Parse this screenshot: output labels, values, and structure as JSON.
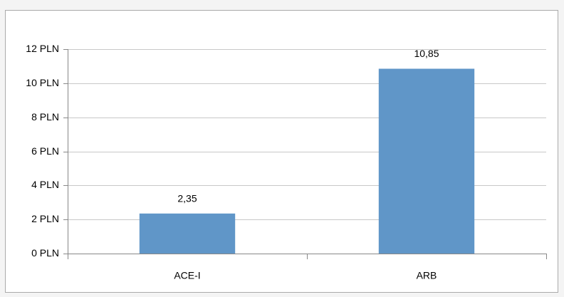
{
  "chart_data": {
    "type": "bar",
    "categories": [
      "ACE-I",
      "ARB"
    ],
    "values": [
      2.35,
      10.85
    ],
    "value_labels": [
      "2,35",
      "10,85"
    ],
    "color": "#6096c8",
    "ylim": [
      0,
      12
    ],
    "yticks": [
      {
        "value": 0,
        "label": "0 PLN"
      },
      {
        "value": 2,
        "label": "2 PLN"
      },
      {
        "value": 4,
        "label": "4 PLN"
      },
      {
        "value": 6,
        "label": "6 PLN"
      },
      {
        "value": 8,
        "label": "8 PLN"
      },
      {
        "value": 10,
        "label": "10 PLN"
      },
      {
        "value": 12,
        "label": "12 PLN"
      }
    ],
    "grid": true
  }
}
